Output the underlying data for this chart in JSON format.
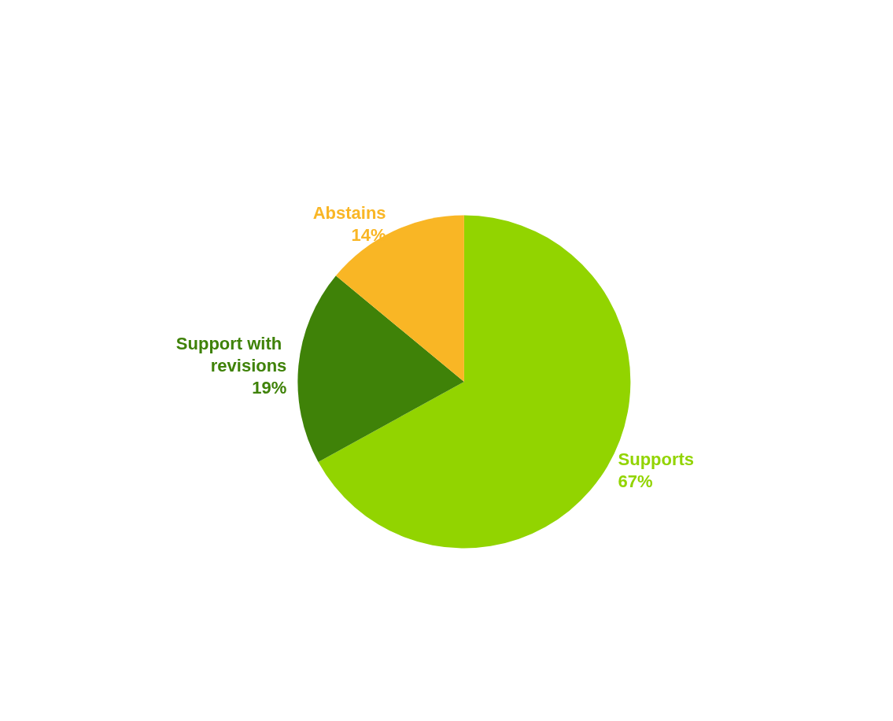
{
  "chart_data": {
    "type": "pie",
    "categories": [
      "Supports",
      "Support with revisions",
      "Abstains"
    ],
    "values": [
      67,
      19,
      14
    ],
    "colors": [
      "#92d400",
      "#3f8208",
      "#f9b625"
    ],
    "value_labels": [
      "67%",
      "19%",
      "14%"
    ],
    "legend": false
  }
}
